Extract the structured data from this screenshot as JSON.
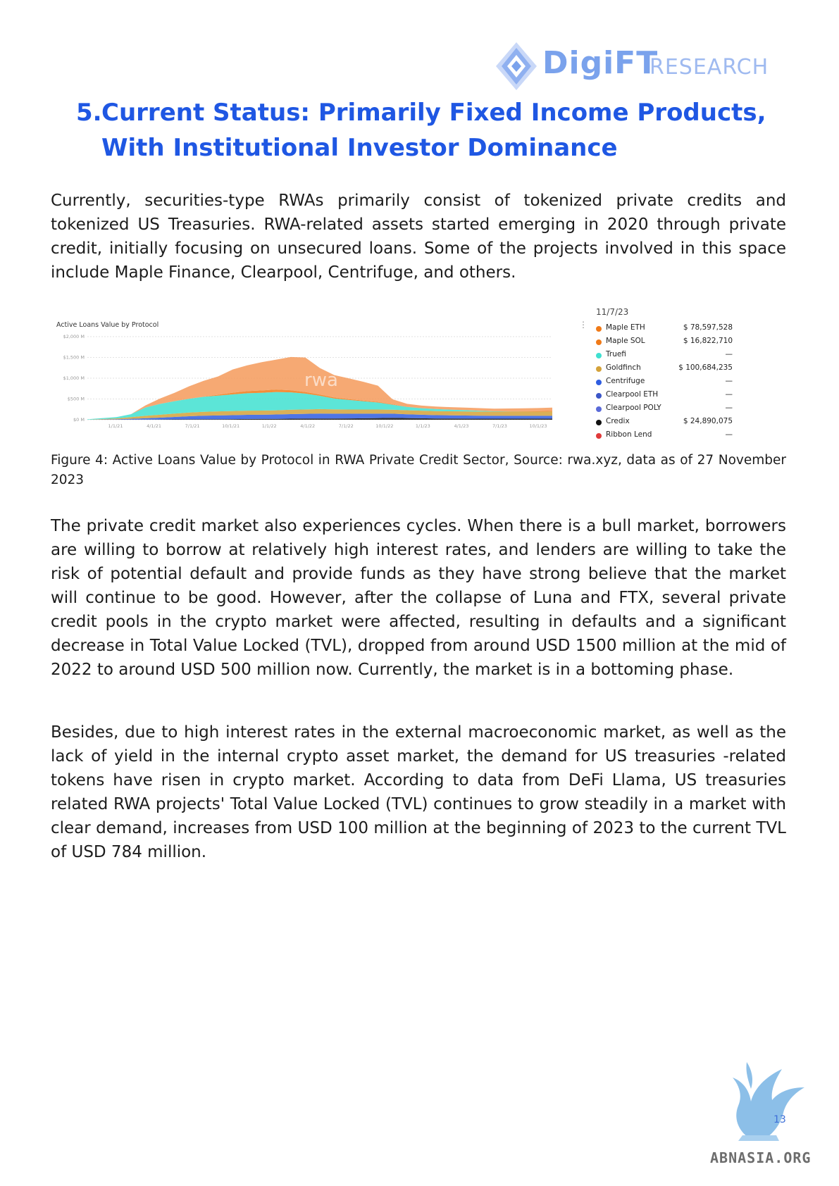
{
  "header": {
    "brand": "DigiFT",
    "brand_suffix": "RESEARCH"
  },
  "section": {
    "number": "5.",
    "title_line1": "Current Status: Primarily Fixed Income Products,",
    "title_line2": "With Institutional Investor Dominance"
  },
  "paragraphs": {
    "p1": "Currently, securities-type RWAs primarily consist of tokenized private credits and tokenized US Treasuries. RWA-related assets started emerging in 2020 through private credit, initially focusing on unsecured loans. Some of the projects involved in this space include Maple Finance, Clearpool, Centrifuge, and others.",
    "p2": "The private credit market also experiences cycles. When there is a bull market, borrowers are willing to borrow at relatively high interest rates, and lenders are willing to take the risk of potential default and provide funds as they have strong believe that the market will continue to be good. However, after the collapse of Luna and FTX, several private credit pools in the crypto market were affected, resulting in defaults and a significant decrease in Total Value Locked (TVL), dropped from around USD 1500 million at the mid of 2022 to around USD 500 million now. Currently, the market is in a bottoming phase.",
    "p3": "Besides, due to high interest rates in the external macroeconomic market, as well as the lack of yield in the internal crypto asset market, the demand for US treasuries -related tokens have risen in crypto market. According to data from DeFi Llama, US treasuries related RWA projects' Total Value Locked (TVL) continues to grow steadily in a market with clear demand, increases from USD 100 million at the beginning of 2023 to the current TVL of USD 784 million."
  },
  "figure": {
    "caption": "Figure 4: Active Loans Value by Protocol in RWA Private Credit Sector, Source: rwa.xyz, data as of 27 November 2023",
    "chart_watermark": "rwa",
    "menu_glyph": "⋮"
  },
  "chart_data": {
    "type": "area",
    "title": "Active Loans Value by Protocol",
    "xlabel": "",
    "ylabel": "",
    "y_tick_labels": [
      "$2,000 M",
      "$1,500 M",
      "$1,000 M",
      "$500 M",
      "$0 M"
    ],
    "y_ticks": [
      2000,
      1500,
      1000,
      500,
      0
    ],
    "ylim": [
      0,
      2000
    ],
    "x_tick_labels": [
      "1/1/21",
      "4/1/21",
      "7/1/21",
      "10/1/21",
      "1/1/22",
      "4/1/22",
      "7/1/22",
      "10/1/22",
      "1/1/23",
      "4/1/23",
      "7/1/23",
      "10/1/23"
    ],
    "x": [
      "11/20",
      "1/21",
      "4/21",
      "6/21",
      "7/21",
      "8/21",
      "9/21",
      "10/21",
      "11/21",
      "12/21",
      "1/22",
      "2/22",
      "3/22",
      "4/22",
      "5/22",
      "6/22",
      "7/22",
      "8/22",
      "9/22",
      "10/22",
      "11/22",
      "12/22",
      "1/23",
      "2/23",
      "3/23",
      "4/23",
      "5/23",
      "6/23",
      "7/23",
      "8/23",
      "9/23",
      "10/23",
      "11/23"
    ],
    "stacked": true,
    "grid": true,
    "legend_date": "11/7/23",
    "series": [
      {
        "name": "Credix",
        "color": "#111111",
        "values": [
          0,
          2,
          3,
          4,
          5,
          6,
          8,
          10,
          12,
          14,
          16,
          18,
          20,
          22,
          25,
          28,
          30,
          30,
          32,
          35,
          40,
          45,
          40,
          35,
          30,
          28,
          27,
          26,
          25,
          25,
          25,
          25,
          25
        ]
      },
      {
        "name": "Centrifuge",
        "color": "#2f5de0",
        "values": [
          0,
          5,
          10,
          20,
          30,
          45,
          60,
          75,
          85,
          90,
          95,
          100,
          100,
          105,
          110,
          115,
          118,
          115,
          112,
          110,
          105,
          100,
          90,
          85,
          80,
          78,
          75,
          72,
          70,
          70,
          70,
          70,
          70
        ]
      },
      {
        "name": "Goldfinch",
        "color": "#d4a23a",
        "values": [
          0,
          10,
          20,
          40,
          60,
          70,
          80,
          90,
          95,
          98,
          100,
          100,
          100,
          100,
          105,
          105,
          108,
          105,
          102,
          100,
          100,
          98,
          98,
          98,
          98,
          98,
          99,
          99,
          100,
          100,
          100,
          100,
          101
        ]
      },
      {
        "name": "Truefi",
        "color": "#3fe0d0",
        "values": [
          10,
          20,
          30,
          70,
          200,
          260,
          300,
          330,
          360,
          380,
          400,
          420,
          430,
          440,
          420,
          380,
          320,
          260,
          230,
          200,
          170,
          120,
          80,
          60,
          50,
          40,
          30,
          20,
          10,
          5,
          2,
          0,
          0
        ]
      },
      {
        "name": "Maple SOL",
        "color": "#f07a18",
        "values": [
          0,
          0,
          0,
          0,
          0,
          0,
          0,
          0,
          5,
          20,
          40,
          50,
          55,
          60,
          50,
          40,
          30,
          25,
          20,
          18,
          15,
          10,
          5,
          2,
          0,
          0,
          0,
          0,
          0,
          5,
          8,
          12,
          17
        ]
      },
      {
        "name": "Maple ETH",
        "color": "#f59a5a",
        "values": [
          0,
          0,
          0,
          0,
          50,
          130,
          200,
          300,
          380,
          440,
          560,
          620,
          680,
          720,
          800,
          830,
          640,
          540,
          500,
          450,
          390,
          120,
          70,
          60,
          60,
          60,
          60,
          62,
          63,
          66,
          70,
          74,
          79
        ]
      }
    ],
    "legend": [
      {
        "name": "Maple ETH",
        "color": "#f07a18",
        "value": "$ 78,597,528"
      },
      {
        "name": "Maple SOL",
        "color": "#f07a18",
        "value": "$ 16,822,710"
      },
      {
        "name": "Truefi",
        "color": "#3fe0d0",
        "value": "—"
      },
      {
        "name": "Goldfinch",
        "color": "#d4a23a",
        "value": "$ 100,684,235"
      },
      {
        "name": "Centrifuge",
        "color": "#2f5de0",
        "value": "—"
      },
      {
        "name": "Clearpool ETH",
        "color": "#3b56c7",
        "value": "—"
      },
      {
        "name": "Clearpool POLY",
        "color": "#5a6ad8",
        "value": "—"
      },
      {
        "name": "Credix",
        "color": "#111111",
        "value": "$ 24,890,075"
      },
      {
        "name": "Ribbon Lend",
        "color": "#e03a3a",
        "value": "—"
      }
    ]
  },
  "footer": {
    "page_number": "13",
    "site": "ABNASIA.ORG"
  }
}
